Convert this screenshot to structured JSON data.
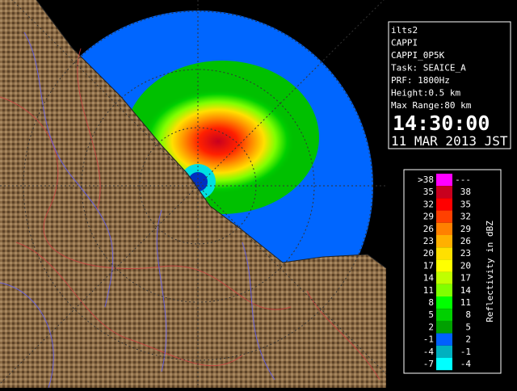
{
  "info": {
    "lines": [
      "ilts2",
      "CAPPI",
      "CAPPI_0P5K",
      "Task: SEAICE_A",
      "PRF: 1800Hz",
      "Height:0.5 km",
      "Max Range:80 km"
    ],
    "time": "14:30:00",
    "date": "11 MAR 2013 JST"
  },
  "legend": {
    "title": "Reflectivity in dBZ",
    "rows": [
      {
        "lower": ">38",
        "upper": "---",
        "color": "#ff00ff"
      },
      {
        "lower": "35",
        "upper": "38",
        "color": "#c8001e"
      },
      {
        "lower": "32",
        "upper": "35",
        "color": "#ff0000"
      },
      {
        "lower": "29",
        "upper": "32",
        "color": "#ff4000"
      },
      {
        "lower": "26",
        "upper": "29",
        "color": "#ff8000"
      },
      {
        "lower": "23",
        "upper": "26",
        "color": "#ffb000"
      },
      {
        "lower": "20",
        "upper": "23",
        "color": "#ffe000"
      },
      {
        "lower": "17",
        "upper": "20",
        "color": "#ffff00"
      },
      {
        "lower": "14",
        "upper": "17",
        "color": "#c0ff00"
      },
      {
        "lower": "11",
        "upper": "14",
        "color": "#80ff00"
      },
      {
        "lower": "8",
        "upper": "11",
        "color": "#00ff00"
      },
      {
        "lower": "5",
        "upper": "8",
        "color": "#00d000"
      },
      {
        "lower": "2",
        "upper": "5",
        "color": "#00a000"
      },
      {
        "lower": "-1",
        "upper": "2",
        "color": "#0060ff"
      },
      {
        "lower": "-4",
        "upper": "-1",
        "color": "#00b0c0"
      },
      {
        "lower": "-7",
        "upper": "-4",
        "color": "#00ffff"
      }
    ]
  }
}
